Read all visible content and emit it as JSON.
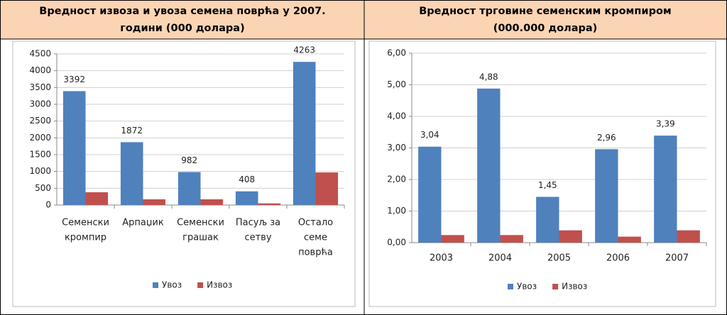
{
  "chart_data": [
    {
      "type": "bar",
      "title": [
        "Вредност извоза и увоза семена поврћа у 2007.",
        "години (000 долара)"
      ],
      "categories": [
        [
          "Семенски",
          "кромпир"
        ],
        [
          "Арпаџик"
        ],
        [
          "Семенски",
          "грашак"
        ],
        [
          "Пасуљ за",
          "сетву"
        ],
        [
          "Остало",
          "семе",
          "поврћа"
        ]
      ],
      "series": [
        {
          "name": "Увоз",
          "color": "#4f81bd",
          "values": [
            3392,
            1872,
            982,
            408,
            4263
          ],
          "data_labels": true
        },
        {
          "name": "Извоз",
          "color": "#c0504d",
          "values": [
            380,
            170,
            170,
            50,
            970
          ],
          "data_labels": false
        }
      ],
      "ylim": [
        0,
        4500
      ],
      "yticks": [
        0,
        500,
        1000,
        1500,
        2000,
        2500,
        3000,
        3500,
        4000,
        4500
      ],
      "grid": true,
      "legend": "bottom"
    },
    {
      "type": "bar",
      "title": [
        "Вредност трговине семенским кромпиром",
        "(000.000 долара)"
      ],
      "categories": [
        [
          "2003"
        ],
        [
          "2004"
        ],
        [
          "2005"
        ],
        [
          "2006"
        ],
        [
          "2007"
        ]
      ],
      "series": [
        {
          "name": "Увоз",
          "color": "#4f81bd",
          "values": [
            3.04,
            4.88,
            1.45,
            2.96,
            3.39
          ],
          "value_labels": [
            "3,04",
            "4,88",
            "1,45",
            "2,96",
            "3,39"
          ],
          "data_labels": true
        },
        {
          "name": "Извоз",
          "color": "#c0504d",
          "values": [
            0.24,
            0.24,
            0.39,
            0.19,
            0.39
          ],
          "data_labels": false
        }
      ],
      "ylim": [
        0,
        6
      ],
      "yticks": [
        {
          "value": 0,
          "label": "0,00"
        },
        {
          "value": 1,
          "label": "1,00"
        },
        {
          "value": 2,
          "label": "2,00"
        },
        {
          "value": 3,
          "label": "3,00"
        },
        {
          "value": 4,
          "label": "4,00"
        },
        {
          "value": 5,
          "label": "5,00"
        },
        {
          "value": 6,
          "label": "6,00"
        }
      ],
      "grid": true,
      "legend": "bottom"
    }
  ]
}
